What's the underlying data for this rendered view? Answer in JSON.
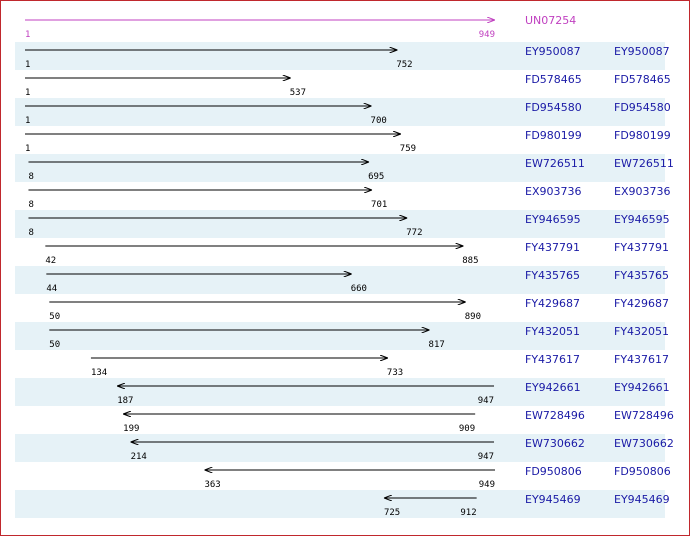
{
  "reference": {
    "label": "UN07254",
    "start": 1,
    "end": 949
  },
  "rows": [
    {
      "start": 1,
      "end": 752,
      "reverse": false,
      "label": "EY950087",
      "link": "EY950087"
    },
    {
      "start": 1,
      "end": 537,
      "reverse": false,
      "label": "FD578465",
      "link": "FD578465"
    },
    {
      "start": 1,
      "end": 700,
      "reverse": false,
      "label": "FD954580",
      "link": "FD954580"
    },
    {
      "start": 1,
      "end": 759,
      "reverse": false,
      "label": "FD980199",
      "link": "FD980199"
    },
    {
      "start": 8,
      "end": 695,
      "reverse": false,
      "label": "EW726511",
      "link": "EW726511"
    },
    {
      "start": 8,
      "end": 701,
      "reverse": false,
      "label": "EX903736",
      "link": "EX903736"
    },
    {
      "start": 8,
      "end": 772,
      "reverse": false,
      "label": "EY946595",
      "link": "EY946595"
    },
    {
      "start": 42,
      "end": 885,
      "reverse": false,
      "label": "FY437791",
      "link": "FY437791"
    },
    {
      "start": 44,
      "end": 660,
      "reverse": false,
      "label": "FY435765",
      "link": "FY435765"
    },
    {
      "start": 50,
      "end": 890,
      "reverse": false,
      "label": "FY429687",
      "link": "FY429687"
    },
    {
      "start": 50,
      "end": 817,
      "reverse": false,
      "label": "FY432051",
      "link": "FY432051"
    },
    {
      "start": 134,
      "end": 733,
      "reverse": false,
      "label": "FY437617",
      "link": "FY437617"
    },
    {
      "start": 187,
      "end": 947,
      "reverse": true,
      "label": "EY942661",
      "link": "EY942661"
    },
    {
      "start": 199,
      "end": 909,
      "reverse": true,
      "label": "EW728496",
      "link": "EW728496"
    },
    {
      "start": 214,
      "end": 947,
      "reverse": true,
      "label": "EW730662",
      "link": "EW730662"
    },
    {
      "start": 363,
      "end": 949,
      "reverse": true,
      "label": "FD950806",
      "link": "FD950806"
    },
    {
      "start": 725,
      "end": 912,
      "reverse": true,
      "label": "EY945469",
      "link": "EY945469"
    }
  ]
}
